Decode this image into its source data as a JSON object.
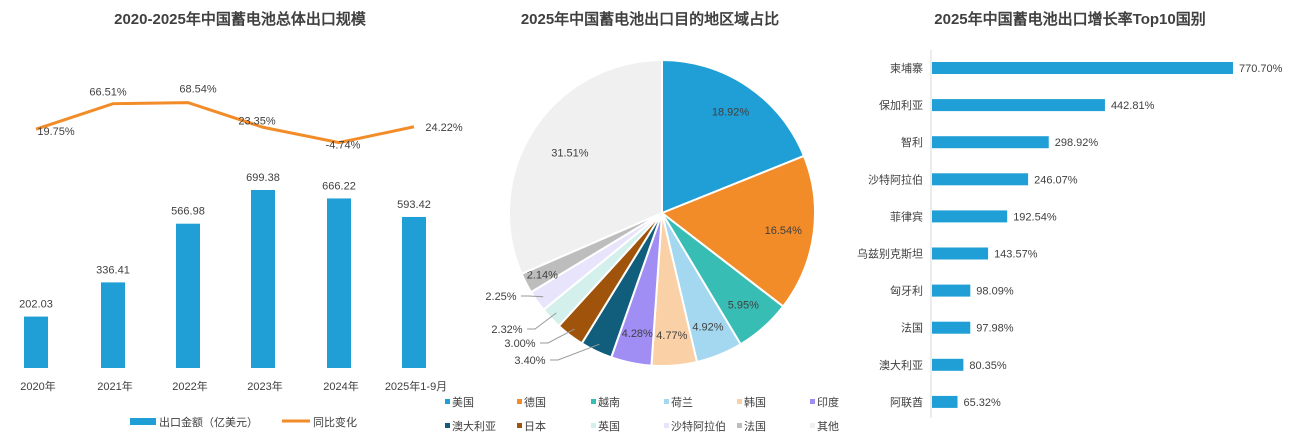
{
  "chart_data": [
    {
      "type": "bar+line",
      "title": "2020-2025年中国蓄电池总体出口规模",
      "categories": [
        "2020年",
        "2021年",
        "2022年",
        "2023年",
        "2024年",
        "2025年1-9月"
      ],
      "series": [
        {
          "name": "出口金额（亿美元）",
          "type": "bar",
          "color": "#1f9fd5",
          "values": [
            202.03,
            336.41,
            566.98,
            699.38,
            666.22,
            593.42
          ],
          "labels": [
            "202.03",
            "336.41",
            "566.98",
            "699.38",
            "666.22",
            "593.42"
          ]
        },
        {
          "name": "同比变化",
          "type": "line",
          "color": "#f28c28",
          "values": [
            19.75,
            66.51,
            68.54,
            23.35,
            -4.74,
            24.22
          ],
          "labels": [
            "19.75%",
            "66.51%",
            "68.54%",
            "23.35%",
            "-4.74%",
            "24.22%"
          ]
        }
      ]
    },
    {
      "type": "pie",
      "title": "2025年中国蓄电池出口目的地区域占比",
      "categories": [
        "美国",
        "德国",
        "越南",
        "荷兰",
        "韩国",
        "印度",
        "澳大利亚",
        "日本",
        "英国",
        "沙特阿拉伯",
        "法国",
        "其他"
      ],
      "values": [
        18.92,
        16.54,
        5.95,
        4.92,
        4.77,
        4.28,
        3.4,
        3.0,
        2.32,
        2.25,
        2.14,
        31.51
      ],
      "labels": [
        "18.92%",
        "16.54%",
        "5.95%",
        "4.92%",
        "4.77%",
        "4.28%",
        "3.40%",
        "3.00%",
        "2.32%",
        "2.25%",
        "2.14%",
        "31.51%"
      ],
      "colors": [
        "#1f9fd5",
        "#f28c28",
        "#38bdb5",
        "#a4d8f0",
        "#fad0a6",
        "#a08ef5",
        "#115e7c",
        "#a0530a",
        "#d4f0ec",
        "#e8e4fb",
        "#bdbdbd",
        "#f0f0f0"
      ],
      "legend": "bottom"
    },
    {
      "type": "barh",
      "title": "2025年中国蓄电池出口增长率Top10国别",
      "categories": [
        "柬埔寨",
        "保加利亚",
        "智利",
        "沙特阿拉伯",
        "菲律宾",
        "乌兹别克斯坦",
        "匈牙利",
        "法国",
        "澳大利亚",
        "阿联酋"
      ],
      "values": [
        770.7,
        442.81,
        298.92,
        246.07,
        192.54,
        143.57,
        98.09,
        97.98,
        80.35,
        65.32
      ],
      "labels": [
        "770.70%",
        "442.81%",
        "298.92%",
        "246.07%",
        "192.54%",
        "143.57%",
        "98.09%",
        "97.98%",
        "80.35%",
        "65.32%"
      ],
      "color": "#1f9fd5"
    }
  ]
}
